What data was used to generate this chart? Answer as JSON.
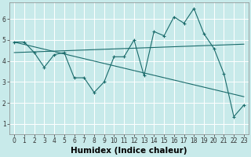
{
  "xlabel": "Humidex (Indice chaleur)",
  "ylabel": "",
  "background_color": "#c8eaea",
  "grid_color": "#ffffff",
  "line_color": "#1a6b6b",
  "x_values": [
    0,
    1,
    2,
    3,
    4,
    5,
    6,
    7,
    8,
    9,
    10,
    11,
    12,
    13,
    14,
    15,
    16,
    17,
    18,
    19,
    20,
    21,
    22,
    23
  ],
  "line1": [
    4.9,
    4.9,
    4.4,
    3.7,
    4.3,
    4.4,
    3.2,
    3.2,
    2.5,
    3.0,
    4.2,
    4.2,
    5.0,
    3.3,
    5.4,
    5.2,
    6.1,
    5.8,
    6.5,
    5.3,
    4.6,
    3.4,
    1.35,
    1.9
  ],
  "line2_x": [
    0,
    23
  ],
  "line2_y": [
    4.9,
    2.3
  ],
  "line3_x": [
    0,
    23
  ],
  "line3_y": [
    4.4,
    4.8
  ],
  "ylim": [
    0.5,
    6.8
  ],
  "xlim": [
    -0.5,
    23.5
  ],
  "yticks": [
    1,
    2,
    3,
    4,
    5,
    6
  ],
  "xticks": [
    0,
    1,
    2,
    3,
    4,
    5,
    6,
    7,
    8,
    9,
    10,
    11,
    12,
    13,
    14,
    15,
    16,
    17,
    18,
    19,
    20,
    21,
    22,
    23
  ],
  "tick_fontsize": 5.5,
  "label_fontsize": 7.5,
  "line_width": 0.8,
  "marker_size": 3.0
}
